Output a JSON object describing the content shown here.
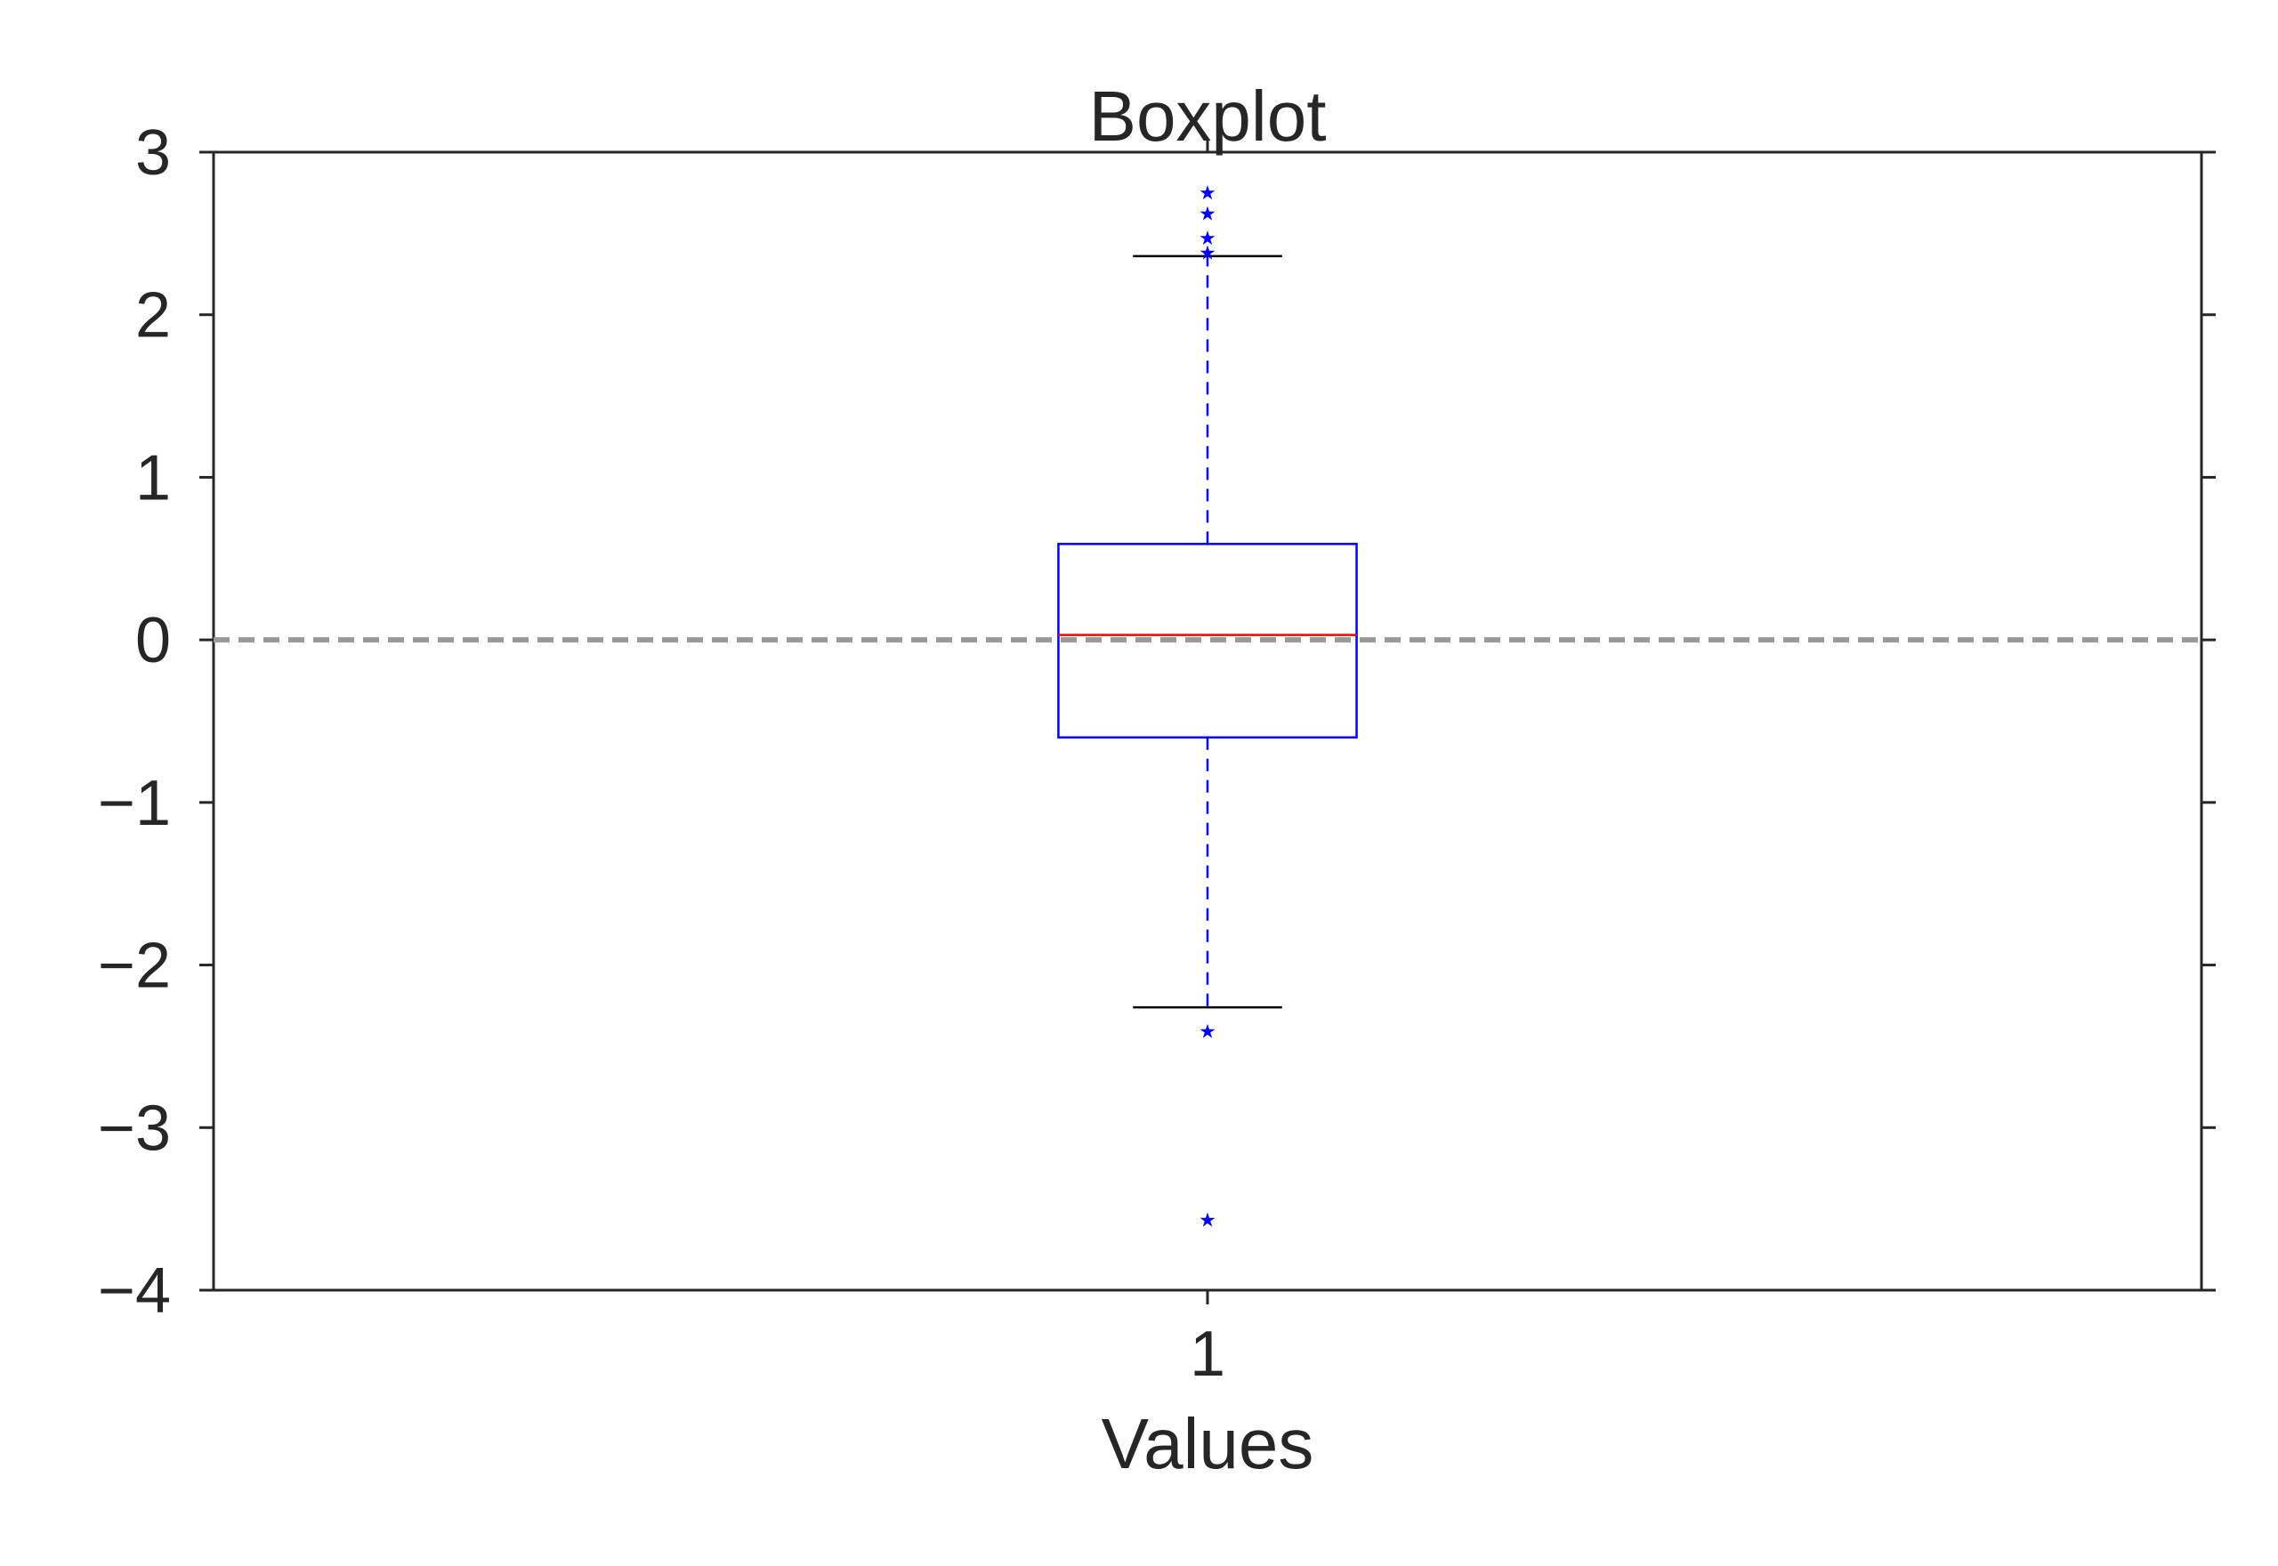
{
  "chart_data": {
    "type": "boxplot",
    "title": "Boxplot",
    "xlabel": "Values",
    "ylabel": "",
    "ylim": [
      -4,
      3
    ],
    "yticks": [
      3,
      2,
      1,
      0,
      -1,
      -2,
      -3,
      -4
    ],
    "ytick_labels": [
      "3",
      "2",
      "1",
      "0",
      "−1",
      "−2",
      "−3",
      "−4"
    ],
    "categories": [
      "1"
    ],
    "boxes": [
      {
        "category": "1",
        "q1": -0.6,
        "median": 0.03,
        "q3": 0.59,
        "whisker_low": -2.26,
        "whisker_high": 2.36,
        "outliers": [
          2.76,
          2.63,
          2.48,
          2.39,
          -2.4,
          -3.56
        ]
      }
    ],
    "reference_line": {
      "y": 0,
      "style": "dashed"
    },
    "grid": false,
    "colors": {
      "box": "#0000ff",
      "whisker": "#0000ff",
      "cap": "#000000",
      "median": "#ff0000",
      "outlier": "#0000ff",
      "reference_line": "#999999",
      "axes": "#262626"
    }
  }
}
